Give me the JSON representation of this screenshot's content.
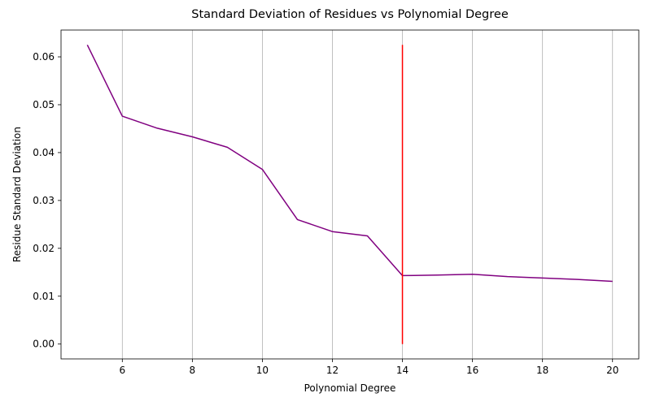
{
  "chart_data": {
    "type": "line",
    "title": "Standard Deviation of Residues vs Polynomial Degree",
    "xlabel": "Polynomial Degree",
    "ylabel": "Residue Standard Deviation",
    "xlim": [
      4.25,
      20.75
    ],
    "ylim": [
      -0.0031,
      0.0656
    ],
    "xticks": [
      6,
      8,
      10,
      12,
      14,
      16,
      18,
      20
    ],
    "yticks": [
      0.0,
      0.01,
      0.02,
      0.03,
      0.04,
      0.05,
      0.06
    ],
    "ytick_labels": [
      "0.00",
      "0.01",
      "0.02",
      "0.03",
      "0.04",
      "0.05",
      "0.06"
    ],
    "grid": "x-only",
    "series": [
      {
        "color": "#800080",
        "x": [
          5,
          6,
          7,
          8,
          9,
          10,
          11,
          12,
          13,
          14,
          15,
          16,
          17,
          18,
          19,
          20
        ],
        "y": [
          0.0625,
          0.0476,
          0.0451,
          0.0433,
          0.0411,
          0.0365,
          0.026,
          0.0235,
          0.0226,
          0.0143,
          0.0144,
          0.0146,
          0.0141,
          0.0138,
          0.0135,
          0.0131
        ]
      }
    ],
    "vline": {
      "x": 14,
      "ymin": 0.0,
      "ymax": 0.0625,
      "color": "#ff0000"
    }
  }
}
